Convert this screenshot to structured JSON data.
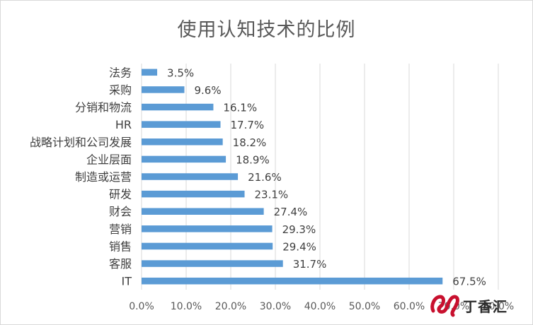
{
  "chart_data": {
    "type": "bar",
    "orientation": "horizontal",
    "title": "使用认知技术的比例",
    "xlabel": "",
    "ylabel": "",
    "categories": [
      "法务",
      "采购",
      "分销和物流",
      "HR",
      "战略计划和公司发展",
      "企业层面",
      "制造或运营",
      "研发",
      "财会",
      "营销",
      "销售",
      "客服",
      "IT"
    ],
    "values": [
      3.5,
      9.6,
      16.1,
      17.7,
      18.2,
      18.9,
      21.6,
      23.1,
      27.4,
      29.3,
      29.4,
      31.7,
      67.5
    ],
    "value_labels": [
      "3.5%",
      "9.6%",
      "16.1%",
      "17.7%",
      "18.2%",
      "18.9%",
      "21.6%",
      "23.1%",
      "27.4%",
      "29.3%",
      "29.4%",
      "31.7%",
      "67.5%"
    ],
    "xlim": [
      0,
      80
    ],
    "x_ticks": [
      0,
      10,
      20,
      30,
      40,
      50,
      60,
      70,
      80
    ],
    "x_tick_labels": [
      "0.0%",
      "10.0%",
      "20.0%",
      "30.0%",
      "40.0%",
      "50.0%",
      "60.0%",
      "70.0%",
      "80.0%"
    ],
    "grid": "vertical",
    "bar_color": "#5b9bd5",
    "grid_color": "#d9d9d9"
  },
  "watermark": {
    "text": "丁香汇",
    "icon": "logo-mark",
    "color": "#c8102e"
  }
}
